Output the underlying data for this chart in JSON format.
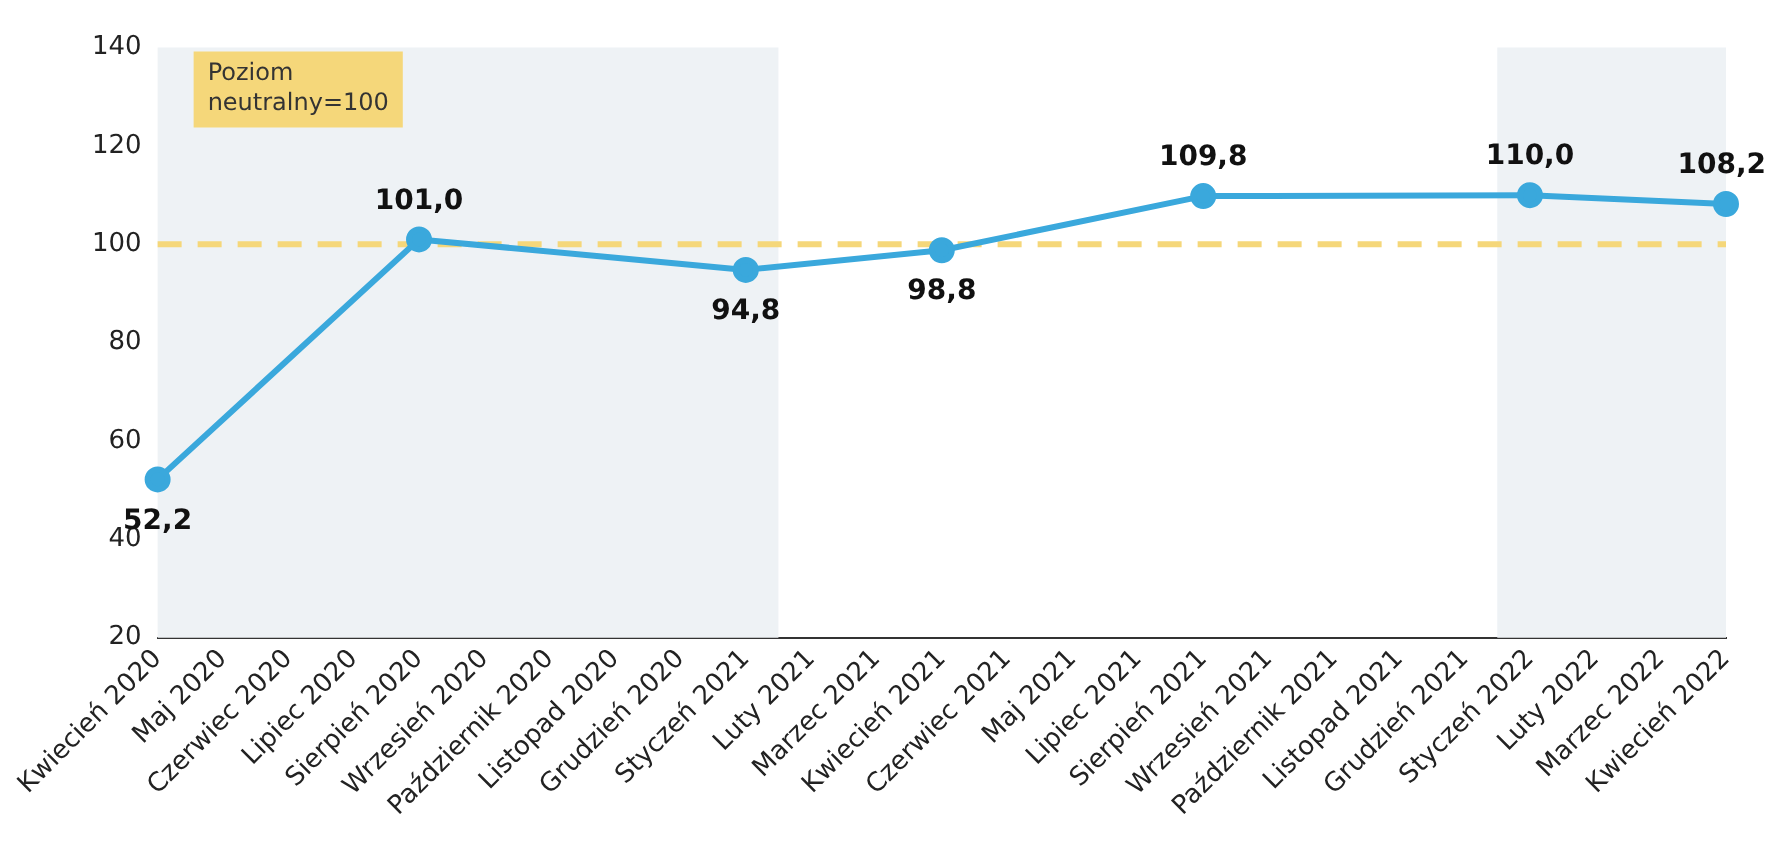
{
  "chart_data": {
    "type": "line",
    "categories": [
      "Kwiecień 2020",
      "Maj 2020",
      "Czerwiec 2020",
      "Lipiec 2020",
      "Sierpień 2020",
      "Wrzesień 2020",
      "Październik 2020",
      "Listopad 2020",
      "Grudzień 2020",
      "Styczeń 2021",
      "Luty 2021",
      "Marzec 2021",
      "Kwiecień 2021",
      "Czerwiec 2021",
      "Maj 2021",
      "Lipiec 2021",
      "Sierpień 2021",
      "Wrzesień 2021",
      "Październik 2021",
      "Listopad 2021",
      "Grudzień 2021",
      "Styczeń 2022",
      "Luty 2022",
      "Marzec 2022",
      "Kwiecień 2022"
    ],
    "series": [
      {
        "color": "#3aa8dc",
        "values": [
          52.2,
          null,
          null,
          null,
          101.0,
          null,
          null,
          null,
          null,
          94.8,
          null,
          null,
          98.8,
          null,
          null,
          null,
          109.8,
          null,
          null,
          null,
          null,
          110.0,
          null,
          null,
          108.2
        ],
        "value_labels": [
          "52,2",
          null,
          null,
          null,
          "101,0",
          null,
          null,
          null,
          null,
          "94,8",
          null,
          null,
          "98,8",
          null,
          null,
          null,
          "109,8",
          null,
          null,
          null,
          null,
          "110,0",
          null,
          null,
          "108,2"
        ]
      }
    ],
    "ylim": [
      20,
      140
    ],
    "yticks": [
      20,
      40,
      60,
      80,
      100,
      120,
      140
    ],
    "grid": false,
    "legend": false,
    "marker": "circle",
    "line_style": "solid",
    "ref_lines": [
      {
        "axis": "y",
        "value": 100,
        "color": "#f5d77a",
        "line_style": "dashed"
      }
    ],
    "annotations": [
      "Poziom\nneutralny=100"
    ],
    "bands": [
      {
        "axis": "x",
        "from": "Kwiecień 2020",
        "to": "Styczeń 2021",
        "color": "#eef2f5"
      },
      {
        "axis": "x",
        "from": "Styczeń 2022",
        "to": "Kwiecień 2022",
        "color": "#eef2f5"
      }
    ]
  }
}
